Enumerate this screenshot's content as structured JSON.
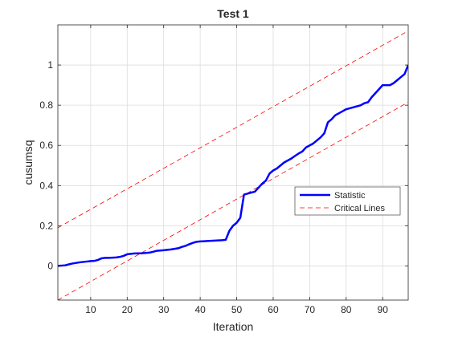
{
  "chart_data": {
    "type": "line",
    "title": "Test 1",
    "xlabel": "Iteration",
    "ylabel": "cusumsq",
    "xlim": [
      1,
      97
    ],
    "ylim": [
      -0.17,
      1.2
    ],
    "xticks": [
      10,
      20,
      30,
      40,
      50,
      60,
      70,
      80,
      90
    ],
    "xtick_labels": [
      "10",
      "20",
      "30",
      "40",
      "50",
      "60",
      "70",
      "80",
      "90"
    ],
    "yticks": [
      0,
      0.2,
      0.4,
      0.6,
      0.8,
      1
    ],
    "ytick_labels": [
      "0",
      "0.2",
      "0.4",
      "0.6",
      "0.8",
      "1"
    ],
    "grid": true,
    "legend_position": "right",
    "series": [
      {
        "name": "Statistic",
        "color": "#0000ff",
        "style": "solid",
        "x": [
          1,
          3,
          4,
          5,
          6,
          7,
          8,
          9,
          10,
          11,
          12,
          13,
          14,
          15,
          17,
          18,
          19,
          20,
          21,
          22,
          24,
          26,
          27,
          28,
          30,
          32,
          34,
          35,
          36,
          37,
          38,
          39,
          40,
          42,
          44,
          45,
          46,
          47,
          48,
          49,
          50,
          51,
          52,
          53,
          54,
          55,
          56,
          57,
          58,
          59,
          60,
          61,
          62,
          63,
          64,
          65,
          66,
          67,
          68,
          69,
          70,
          71,
          72,
          73,
          74,
          75,
          76,
          77,
          78,
          79,
          80,
          81,
          82,
          83,
          84,
          85,
          86,
          87,
          88,
          89,
          90,
          91,
          92,
          93,
          94,
          95,
          96,
          97
        ],
        "y": [
          0.0,
          0.003,
          0.008,
          0.012,
          0.015,
          0.018,
          0.02,
          0.022,
          0.024,
          0.025,
          0.03,
          0.038,
          0.04,
          0.04,
          0.042,
          0.045,
          0.05,
          0.058,
          0.06,
          0.062,
          0.063,
          0.066,
          0.07,
          0.075,
          0.078,
          0.082,
          0.088,
          0.095,
          0.1,
          0.108,
          0.115,
          0.12,
          0.122,
          0.124,
          0.126,
          0.127,
          0.128,
          0.13,
          0.175,
          0.2,
          0.215,
          0.24,
          0.355,
          0.36,
          0.365,
          0.37,
          0.39,
          0.41,
          0.425,
          0.46,
          0.475,
          0.485,
          0.5,
          0.515,
          0.525,
          0.535,
          0.548,
          0.56,
          0.57,
          0.59,
          0.6,
          0.61,
          0.625,
          0.64,
          0.66,
          0.715,
          0.73,
          0.75,
          0.76,
          0.77,
          0.78,
          0.785,
          0.79,
          0.795,
          0.8,
          0.81,
          0.815,
          0.84,
          0.86,
          0.88,
          0.9,
          0.9,
          0.9,
          0.91,
          0.925,
          0.94,
          0.955,
          1.0
        ]
      },
      {
        "name": "Critical Lines",
        "color": "#ff0000",
        "style": "dashed",
        "x": [
          1,
          97
        ],
        "y": [
          0.19,
          1.17
        ]
      },
      {
        "name": "",
        "color": "#ff0000",
        "style": "dashed",
        "x": [
          1,
          97
        ],
        "y": [
          -0.17,
          0.815
        ]
      }
    ],
    "legend": [
      "Statistic",
      "Critical Lines"
    ]
  }
}
